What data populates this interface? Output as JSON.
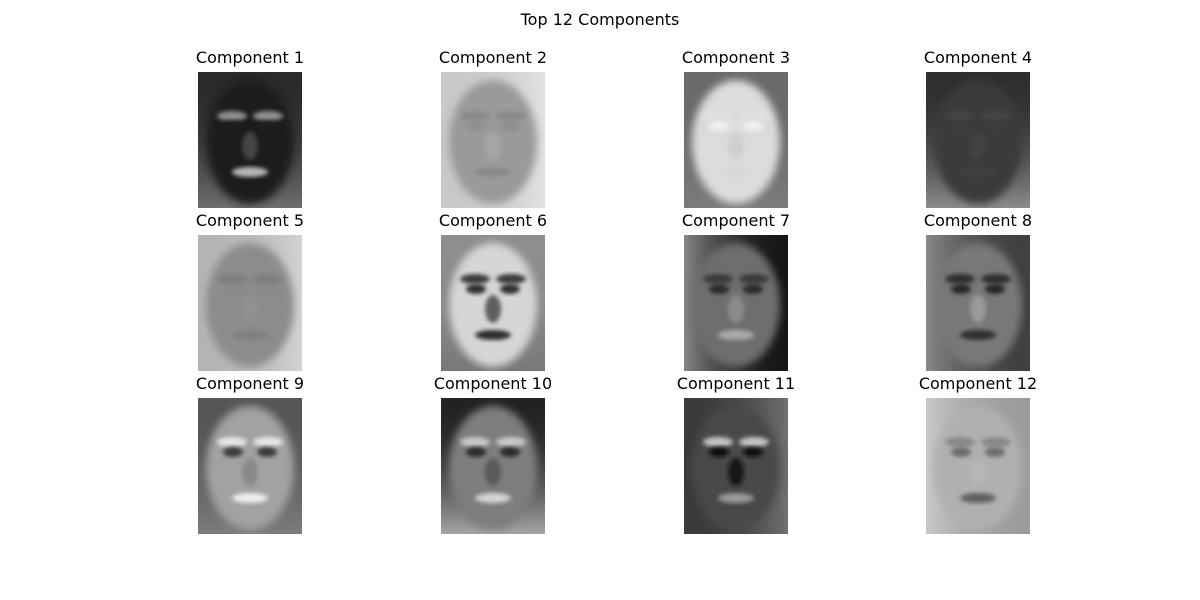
{
  "figure": {
    "title": "Top 12 Components"
  },
  "panels": [
    {
      "title": "Component 1",
      "face": {
        "bg": "#2a2a2a",
        "skin": "#1c1c1c",
        "edge": "#7a7a7a",
        "brow": "#8f8f8f",
        "eye": "#1a1a1a",
        "mouth": "#b8b8b8",
        "nose": "#444444",
        "light": "bottom"
      }
    },
    {
      "title": "Component 2",
      "face": {
        "bg": "#c8c8c8",
        "skin": "#9a9a9a",
        "edge": "#e6e6e6",
        "brow": "#8a8a8a",
        "eye": "#8e8e8e",
        "mouth": "#8a8a8a",
        "nose": "#a6a6a6",
        "light": "left"
      }
    },
    {
      "title": "Component 3",
      "face": {
        "bg": "#6a6a6a",
        "skin": "#dcdcdc",
        "edge": "#9a9a9a",
        "brow": "#e0e0e0",
        "eye": "#f0f0f0",
        "mouth": "#d8d8d8",
        "nose": "#cfcfcf",
        "light": "center"
      }
    },
    {
      "title": "Component 4",
      "face": {
        "bg": "#2e2e2e",
        "skin": "#3a3a3a",
        "edge": "#9c9c9c",
        "brow": "#444444",
        "eye": "#3c3c3c",
        "mouth": "#404040",
        "nose": "#424242",
        "light": "bottom"
      }
    },
    {
      "title": "Component 5",
      "face": {
        "bg": "#b4b4b4",
        "skin": "#8c8c8c",
        "edge": "#d8d8d8",
        "brow": "#7e7e7e",
        "eye": "#888888",
        "mouth": "#808080",
        "nose": "#919191",
        "light": "left"
      }
    },
    {
      "title": "Component 6",
      "face": {
        "bg": "#8e8e8e",
        "skin": "#d6d6d6",
        "edge": "#4e4e4e",
        "brow": "#3a3a3a",
        "eye": "#2e2e2e",
        "mouth": "#2a2a2a",
        "nose": "#5e5e5e",
        "light": "center"
      }
    },
    {
      "title": "Component 7",
      "face": {
        "bg": "#161616",
        "skin": "#6e6e6e",
        "edge": "#9a9a9a",
        "brow": "#3a3a3a",
        "eye": "#2a2a2a",
        "mouth": "#aaaaaa",
        "nose": "#8a8a8a",
        "light": "right"
      }
    },
    {
      "title": "Component 8",
      "face": {
        "bg": "#404040",
        "skin": "#787878",
        "edge": "#969696",
        "brow": "#2f2f2f",
        "eye": "#262626",
        "mouth": "#2e2e2e",
        "nose": "#9a9a9a",
        "light": "right"
      }
    },
    {
      "title": "Component 9",
      "face": {
        "bg": "#555555",
        "skin": "#a2a2a2",
        "edge": "#c6c6c6",
        "brow": "#e6e6e6",
        "eye": "#3a3a3a",
        "mouth": "#eeeeee",
        "nose": "#8a8a8a",
        "light": "center"
      }
    },
    {
      "title": "Component 10",
      "face": {
        "bg": "#222222",
        "skin": "#7e7e7e",
        "edge": "#bdbdbd",
        "brow": "#c8c8c8",
        "eye": "#2c2c2c",
        "mouth": "#d6d6d6",
        "nose": "#5a5a5a",
        "light": "bottom"
      }
    },
    {
      "title": "Component 11",
      "face": {
        "bg": "#3a3a3a",
        "skin": "#4a4a4a",
        "edge": "#7a7a7a",
        "brow": "#c4c4c4",
        "eye": "#0e0e0e",
        "mouth": "#9a9a9a",
        "nose": "#161616",
        "light": "left"
      }
    },
    {
      "title": "Component 12",
      "face": {
        "bg": "#9c9c9c",
        "skin": "#b0b0b0",
        "edge": "#d0d0d0",
        "brow": "#888888",
        "eye": "#6c6c6c",
        "mouth": "#5e5e5e",
        "nose": "#b6b6b6",
        "light": "right"
      }
    }
  ]
}
